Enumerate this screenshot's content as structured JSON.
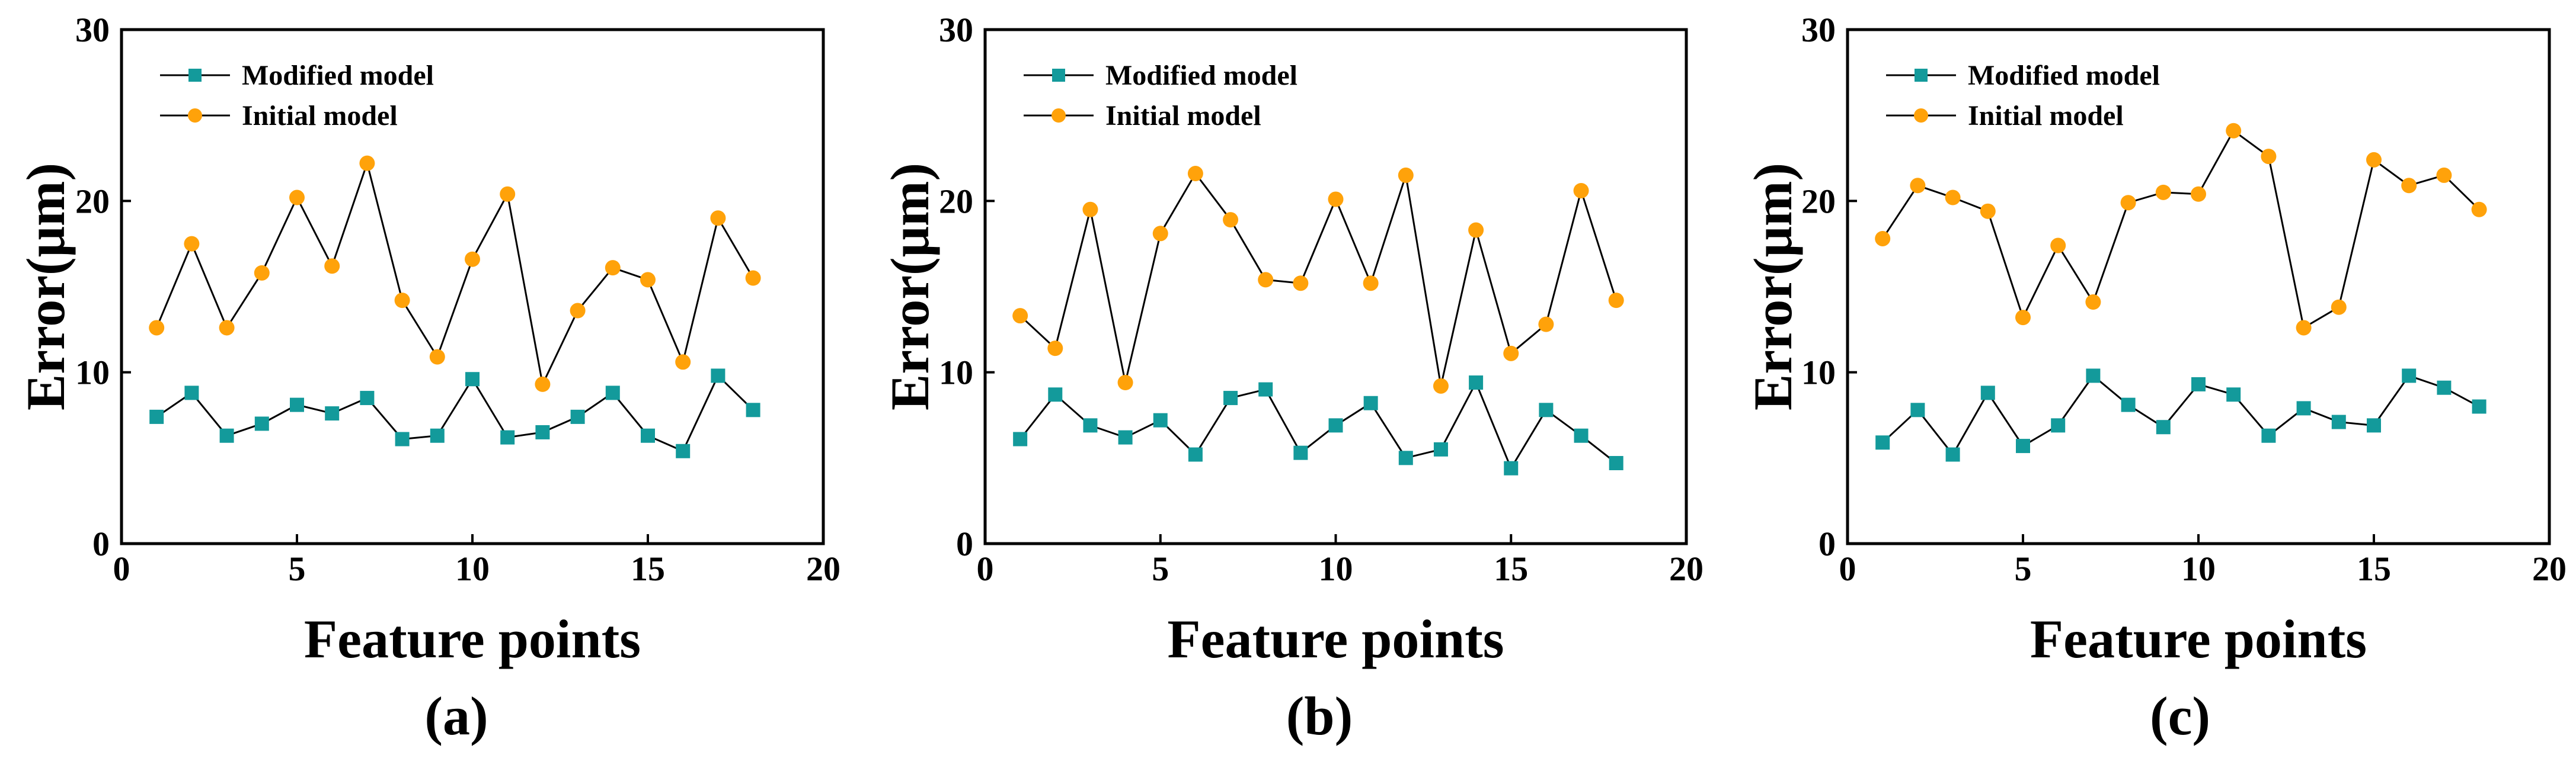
{
  "figure": {
    "colors": {
      "modified": "#139a9b",
      "initial": "#ffa20a",
      "line": "#000000"
    }
  },
  "chart_data": [
    {
      "type": "line",
      "panel_label": "(a)",
      "xlabel": "Feature points",
      "ylabel": "Error(μm)",
      "xlim": [
        0,
        20
      ],
      "ylim": [
        0,
        30
      ],
      "xticks": [
        0,
        5,
        10,
        15,
        20
      ],
      "yticks": [
        0,
        10,
        20,
        30
      ],
      "legend": "top-left",
      "x": [
        1,
        2,
        3,
        4,
        5,
        6,
        7,
        8,
        9,
        10,
        11,
        12,
        13,
        14,
        15,
        16,
        17,
        18
      ],
      "series": [
        {
          "name": "Modified model",
          "marker": "square",
          "color": "#139a9b",
          "values": [
            7.4,
            8.8,
            6.3,
            7.0,
            8.1,
            7.6,
            8.5,
            6.1,
            6.3,
            9.6,
            6.2,
            6.5,
            7.4,
            8.8,
            6.3,
            5.4,
            9.8,
            7.8
          ]
        },
        {
          "name": "Initial model",
          "marker": "circle",
          "color": "#ffa20a",
          "values": [
            12.6,
            17.5,
            12.6,
            15.8,
            20.2,
            16.2,
            22.2,
            14.2,
            10.9,
            16.6,
            20.4,
            9.3,
            13.6,
            16.1,
            15.4,
            10.6,
            19.0,
            15.5
          ]
        }
      ]
    },
    {
      "type": "line",
      "panel_label": "(b)",
      "xlabel": "Feature points",
      "ylabel": "Error(μm)",
      "xlim": [
        0,
        20
      ],
      "ylim": [
        0,
        30
      ],
      "xticks": [
        0,
        5,
        10,
        15,
        20
      ],
      "yticks": [
        0,
        10,
        20,
        30
      ],
      "legend": "top-left",
      "x": [
        1,
        2,
        3,
        4,
        5,
        6,
        7,
        8,
        9,
        10,
        11,
        12,
        13,
        14,
        15,
        16,
        17,
        18
      ],
      "series": [
        {
          "name": "Modified model",
          "marker": "square",
          "color": "#139a9b",
          "values": [
            6.1,
            8.7,
            6.9,
            6.2,
            7.2,
            5.2,
            8.5,
            9.0,
            5.3,
            6.9,
            8.2,
            5.0,
            5.5,
            9.4,
            4.4,
            7.8,
            6.3,
            4.7
          ]
        },
        {
          "name": "Initial model",
          "marker": "circle",
          "color": "#ffa20a",
          "values": [
            13.3,
            11.4,
            19.5,
            9.4,
            18.1,
            21.6,
            18.9,
            15.4,
            15.2,
            20.1,
            15.2,
            21.5,
            9.2,
            18.3,
            11.1,
            12.8,
            20.6,
            14.2
          ]
        }
      ]
    },
    {
      "type": "line",
      "panel_label": "(c)",
      "xlabel": "Feature points",
      "ylabel": "Error(μm)",
      "xlim": [
        0,
        20
      ],
      "ylim": [
        0,
        30
      ],
      "xticks": [
        0,
        5,
        10,
        15,
        20
      ],
      "yticks": [
        0,
        10,
        20,
        30
      ],
      "legend": "top-left",
      "x": [
        1,
        2,
        3,
        4,
        5,
        6,
        7,
        8,
        9,
        10,
        11,
        12,
        13,
        14,
        15,
        16,
        17,
        18
      ],
      "series": [
        {
          "name": "Modified model",
          "marker": "square",
          "color": "#139a9b",
          "values": [
            5.9,
            7.8,
            5.2,
            8.8,
            5.7,
            6.9,
            9.8,
            8.1,
            6.8,
            9.3,
            8.7,
            6.3,
            7.9,
            7.1,
            6.9,
            9.8,
            9.1,
            8.0
          ]
        },
        {
          "name": "Initial model",
          "marker": "circle",
          "color": "#ffa20a",
          "values": [
            17.8,
            20.9,
            20.2,
            19.4,
            13.2,
            17.4,
            14.1,
            19.9,
            20.5,
            20.4,
            24.1,
            22.6,
            12.6,
            13.8,
            22.4,
            20.9,
            21.5,
            19.5
          ]
        }
      ]
    }
  ]
}
